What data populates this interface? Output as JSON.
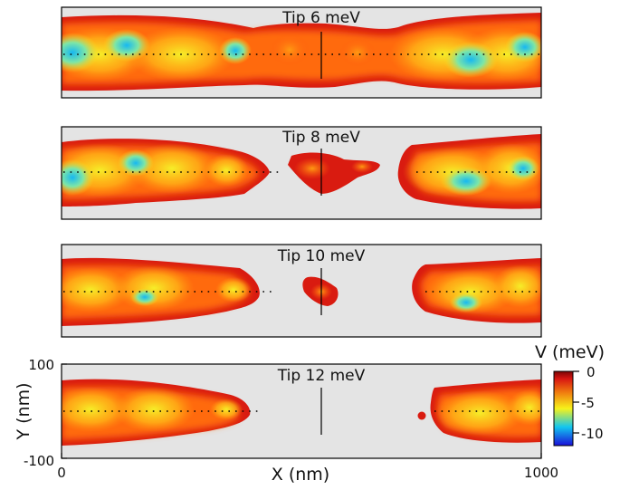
{
  "chart_data": {
    "type": "heatmap",
    "xlabel": "X (nm)",
    "ylabel": "Y (nm)",
    "xlim": [
      0,
      1000
    ],
    "ylim": [
      -100,
      100
    ],
    "xticks": [
      "0",
      "1000"
    ],
    "yticks": [
      "100",
      "-100"
    ],
    "colorbar": {
      "label": "V (meV)",
      "range": [
        -12,
        0
      ],
      "ticks": [
        "0",
        "-5",
        "-10"
      ],
      "colors": [
        "#1a0fd8",
        "#12c6f0",
        "#f7f21a",
        "#f07a0f",
        "#d81612",
        "#7a0505"
      ]
    },
    "panels": [
      {
        "title": "Tip 6 meV"
      },
      {
        "title": "Tip 8 meV"
      },
      {
        "title": "Tip 10 meV"
      },
      {
        "title": "Tip 12 meV"
      }
    ]
  }
}
